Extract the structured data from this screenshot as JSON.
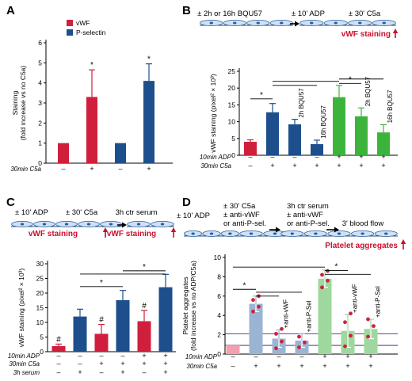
{
  "panels": {
    "A": {
      "letter": "A"
    },
    "B": {
      "letter": "B",
      "steps": [
        "± 2h or 16h BQU57",
        "± 10' ADP",
        "± 30' C5a"
      ],
      "readout": "vWF staining"
    },
    "C": {
      "letter": "C",
      "steps": [
        "± 10' ADP",
        "± 30' C5a",
        "3h ctr serum"
      ],
      "readouts": [
        "vWF staining",
        "vWF staining"
      ]
    },
    "D": {
      "letter": "D",
      "steps": [
        "± 10' ADP",
        "± 30' C5a",
        "± anti-vWF",
        "or anti-P-sel.",
        "3h ctr serum",
        "± anti-vWF",
        "or anti-P-sel.",
        "3' blood flow"
      ],
      "readout": "Platelet aggregates"
    }
  },
  "colors": {
    "red": "#d01f3c",
    "blue": "#1d4f8c",
    "green": "#3cb43c",
    "lightblue": "#9ab4d4",
    "lightgreen": "#9ed89e",
    "pink": "#f2a0ae",
    "dot": "#d01f3c",
    "line_purple": "#6a3d8f",
    "text_red": "#c8102e"
  },
  "chart_data": [
    {
      "panel": "A",
      "type": "bar",
      "ylabel": "Staining",
      "ylabel2": "(fold increase vs no C5a)",
      "ylim": [
        0,
        6
      ],
      "yticks": [
        "0",
        "1",
        "2",
        "3",
        "4",
        "5",
        "6"
      ],
      "legend": [
        "vWF",
        "P-selectin"
      ],
      "bars": [
        {
          "series": "vWF",
          "value": 1.0,
          "err": 0,
          "color": "red",
          "sig": ""
        },
        {
          "series": "vWF",
          "value": 3.3,
          "err": 1.35,
          "color": "red",
          "sig": "*"
        },
        {
          "series": "P-selectin",
          "value": 1.0,
          "err": 0,
          "color": "blue",
          "sig": ""
        },
        {
          "series": "P-selectin",
          "value": 4.1,
          "err": 0.85,
          "color": "blue",
          "sig": "*"
        }
      ],
      "cond_labels": [
        "30min C5a"
      ],
      "conds": [
        [
          "–",
          "+",
          "–",
          "+"
        ]
      ]
    },
    {
      "panel": "B",
      "type": "bar",
      "ylabel": "vWF staining (pixel² × 10³)",
      "ylim": [
        0,
        25
      ],
      "yticks": [
        "0",
        "5",
        "10",
        "15",
        "20",
        "25"
      ],
      "bars": [
        {
          "value": 4.0,
          "err": 0.6,
          "color": "red",
          "label": ""
        },
        {
          "value": 12.8,
          "err": 2.6,
          "color": "blue",
          "label": ""
        },
        {
          "value": 9.2,
          "err": 1.5,
          "color": "blue",
          "label": "2h BQU57"
        },
        {
          "value": 3.3,
          "err": 1.2,
          "color": "blue",
          "label": "16h BQU57"
        },
        {
          "value": 17.3,
          "err": 3.5,
          "color": "green",
          "label": ""
        },
        {
          "value": 11.6,
          "err": 2.5,
          "color": "green",
          "label": "2h BQU57"
        },
        {
          "value": 6.8,
          "err": 2.3,
          "color": "green",
          "label": "16h BQU57"
        }
      ],
      "sig_lines": [
        {
          "from": 0,
          "to": 1,
          "y": 16.8,
          "sig": "*"
        },
        {
          "from": 1,
          "to": 3,
          "y": 20.8,
          "sig": ""
        },
        {
          "from": 1,
          "to": 4,
          "y": 22.0,
          "sig": ""
        },
        {
          "from": 4,
          "to": 5,
          "y": 21.4,
          "sig": "*"
        },
        {
          "from": 4,
          "to": 6,
          "y": 22.7,
          "sig": ""
        }
      ],
      "cond_labels": [
        "10min ADP",
        "30min C5a"
      ],
      "conds": [
        [
          "–",
          "–",
          "–",
          "–",
          "+",
          "+",
          "+"
        ],
        [
          "–",
          "+",
          "+",
          "+",
          "+",
          "+",
          "+"
        ]
      ]
    },
    {
      "panel": "C",
      "type": "bar",
      "ylabel": "vWF staining (pixel² × 10³)",
      "ylim": [
        0,
        30
      ],
      "yticks": [
        "0",
        "5",
        "10",
        "15",
        "20",
        "25",
        "30"
      ],
      "bars": [
        {
          "value": 1.9,
          "err": 0.7,
          "color": "red",
          "sig": "#"
        },
        {
          "value": 12.0,
          "err": 2.5,
          "color": "blue",
          "sig": ""
        },
        {
          "value": 6.1,
          "err": 3.2,
          "color": "red",
          "sig": "#"
        },
        {
          "value": 17.6,
          "err": 3.3,
          "color": "blue",
          "sig": ""
        },
        {
          "value": 10.4,
          "err": 3.7,
          "color": "red",
          "sig": "#"
        },
        {
          "value": 22.0,
          "err": 4.4,
          "color": "blue",
          "sig": ""
        }
      ],
      "sig_lines": [
        {
          "from": 1,
          "to": 3,
          "y": 22.2,
          "sig": "*"
        },
        {
          "from": 1,
          "to": 5,
          "y": 26.5,
          "sig": ""
        },
        {
          "from": 3,
          "to": 5,
          "y": 27.6,
          "sig": "*"
        }
      ],
      "cond_labels": [
        "10min ADP",
        "30min C5a",
        "3h serum"
      ],
      "conds": [
        [
          "–",
          "–",
          "–",
          "–",
          "+",
          "+"
        ],
        [
          "–",
          "–",
          "+",
          "+",
          "+",
          "+"
        ],
        [
          "–",
          "+",
          "–",
          "+",
          "–",
          "+"
        ]
      ]
    },
    {
      "panel": "D",
      "type": "bar",
      "ylabel": "Platelet aggregates",
      "ylabel2": "(fold increase vs no ADP/C5a)",
      "ylim": [
        0,
        10
      ],
      "yticks": [
        "0",
        "2",
        "4",
        "6",
        "8",
        "10"
      ],
      "hlines": [
        0.9,
        2.1
      ],
      "bars": [
        {
          "value": 0.9,
          "err": 0,
          "color": "pink",
          "label": "",
          "dots": []
        },
        {
          "value": 5.2,
          "err": 0.8,
          "color": "lightblue",
          "label": "",
          "dots": [
            4.4,
            4.9,
            5.6,
            6.0
          ]
        },
        {
          "value": 1.6,
          "err": 0.9,
          "color": "lightblue",
          "label": "+anti-vWF",
          "dots": [
            0.6,
            1.3,
            2.1,
            2.6
          ]
        },
        {
          "value": 1.4,
          "err": 0.7,
          "color": "lightblue",
          "label": "+anti-P-Sel",
          "dots": [
            0.7,
            1.2,
            1.8
          ]
        },
        {
          "value": 7.8,
          "err": 0.9,
          "color": "lightgreen",
          "label": "",
          "dots": [
            6.9,
            7.6,
            8.2,
            8.6
          ]
        },
        {
          "value": 2.4,
          "err": 1.7,
          "color": "lightgreen",
          "label": "+anti-vWF",
          "dots": [
            0.8,
            1.9,
            3.3,
            4.2
          ]
        },
        {
          "value": 2.6,
          "err": 1.0,
          "color": "lightgreen",
          "label": "+anti-P-Sel",
          "dots": [
            1.8,
            2.9,
            3.6
          ]
        }
      ],
      "sig_lines": [
        {
          "from": 0,
          "to": 1,
          "y": 6.7,
          "sig": "*"
        },
        {
          "from": 1,
          "to": 2,
          "y": 6.0,
          "sig": ""
        },
        {
          "from": 1,
          "to": 3,
          "y": 6.4,
          "sig": ""
        },
        {
          "from": 0,
          "to": 4,
          "y": 9.0,
          "sig": ""
        },
        {
          "from": 4,
          "to": 5,
          "y": 8.65,
          "sig": "*"
        },
        {
          "from": 4,
          "to": 6,
          "y": 8.25,
          "sig": ""
        }
      ],
      "cond_labels": [
        "10min ADP",
        "30min C5a"
      ],
      "conds": [
        [
          "–",
          "–",
          "–",
          "–",
          "+",
          "+",
          "+"
        ],
        [
          "–",
          "+",
          "+",
          "+",
          "+",
          "+",
          "+"
        ]
      ]
    }
  ]
}
